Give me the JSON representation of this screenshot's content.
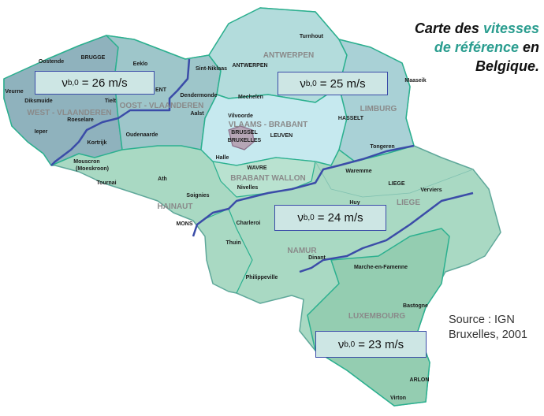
{
  "title": {
    "line1_a": "Carte des ",
    "line1_b": "vitesses",
    "line2": "de référence",
    "line2_b": " en",
    "line3": "Belgique."
  },
  "source": {
    "line1": "Source : IGN",
    "line2": "Bruxelles, 2001"
  },
  "colors": {
    "zone_boundary": "#3b4ca8",
    "province_border": "#2bb08f",
    "west_vlaanderen": "#8fb2bd",
    "oost_vlaanderen": "#9ec6ca",
    "antwerpen": "#b3dcdc",
    "limburg": "#a9d1d6",
    "vlaams_brabant": "#c6e9ef",
    "brussel": "#b6a6b6",
    "wallonie": "#a9d9c3",
    "luxembourg": "#94cdb1",
    "title_accent": "#2a9d8f"
  },
  "zones": [
    {
      "symbol": "ν",
      "subscript": "b,0",
      "value": "= 26 m/s"
    },
    {
      "symbol": "ν",
      "subscript": "b,0",
      "value": "= 25 m/s"
    },
    {
      "symbol": "ν",
      "subscript": "b,0",
      "value": "= 24 m/s"
    },
    {
      "symbol": "ν",
      "subscript": "b,0",
      "value": "= 23 m/s"
    }
  ],
  "provinces": [
    "WEST - VLAANDEREN",
    "OOST - VLAANDEREN",
    "ANTWERPEN",
    "LIMBURG",
    "VLAAMS - BRABANT",
    "BRABANT WALLON",
    "HAINAUT",
    "LIEGE",
    "NAMUR",
    "LUXEMBOURG"
  ],
  "cities": [
    "Oostende",
    "BRUGGE",
    "Eeklo",
    "Sint-Niklaas",
    "Turnhout",
    "ANTWERPEN",
    "Mechelen",
    "Maaseik",
    "Veurne",
    "Diksmuide",
    "Tielt",
    "ENT",
    "Dendermonde",
    "Aalst",
    "Roeselare",
    "Vilvoorde",
    "HASSELT",
    "Ieper",
    "Oudenaarde",
    "Kortrijk",
    "LEUVEN",
    "BRUSSEL",
    "BRUXELLES",
    "Tongeren",
    "Halle",
    "Mouscron",
    "(Moeskroon)",
    "WAVRE",
    "Waremme",
    "Tournai",
    "Ath",
    "Nivelles",
    "LIEGE",
    "Verviers",
    "Huy",
    "Soignies",
    "MONS",
    "Charleroi",
    "Thuin",
    "Dinant",
    "Marche-en-Famenne",
    "Philippeville",
    "Bastogne",
    "ARLON",
    "Virton"
  ]
}
